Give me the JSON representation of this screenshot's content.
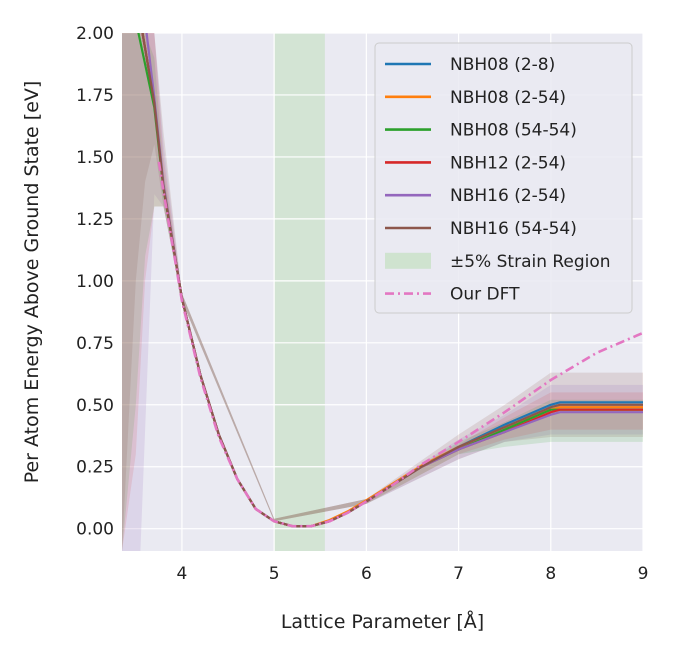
{
  "chart_data": {
    "type": "line",
    "title": "",
    "xlabel": "Lattice Parameter [Å]",
    "ylabel": "Per Atom Energy Above Ground State [eV]",
    "xlim": [
      3.35,
      9.0
    ],
    "ylim": [
      -0.09,
      2.0
    ],
    "xticks": [
      "4",
      "5",
      "6",
      "7",
      "8",
      "9"
    ],
    "yticks": [
      "0.00",
      "0.25",
      "0.50",
      "0.75",
      "1.00",
      "1.25",
      "1.50",
      "1.75",
      "2.00"
    ],
    "grid": true,
    "legend_position": "top-right",
    "strain_region": {
      "name": "±5% Strain Region",
      "x": [
        5.0,
        5.55
      ],
      "color": "#cfe3cf"
    },
    "series": [
      {
        "name": "NBH08 (2-8)",
        "color": "#1f77b4",
        "style": "solid",
        "x": [
          3.55,
          3.7,
          3.8,
          4.0,
          4.2,
          4.4,
          4.6,
          4.8,
          5.0,
          5.2,
          5.4,
          5.6,
          5.8,
          6.0,
          6.3,
          6.6,
          7.0,
          7.5,
          8.0,
          8.1,
          9.0
        ],
        "y": [
          2.05,
          1.72,
          1.38,
          0.93,
          0.62,
          0.38,
          0.2,
          0.08,
          0.03,
          0.01,
          0.01,
          0.03,
          0.065,
          0.11,
          0.18,
          0.25,
          0.33,
          0.42,
          0.5,
          0.51,
          0.51
        ]
      },
      {
        "name": "NBH08 (2-54)",
        "color": "#ff7f0e",
        "style": "solid",
        "x": [
          3.55,
          3.7,
          3.8,
          4.0,
          4.2,
          4.4,
          4.6,
          4.8,
          5.0,
          5.2,
          5.4,
          5.6,
          5.8,
          6.0,
          6.3,
          6.6,
          7.0,
          7.5,
          8.0,
          8.1,
          9.0
        ],
        "y": [
          2.05,
          1.72,
          1.38,
          0.93,
          0.62,
          0.38,
          0.2,
          0.08,
          0.03,
          0.01,
          0.01,
          0.035,
          0.07,
          0.115,
          0.185,
          0.255,
          0.33,
          0.41,
          0.48,
          0.49,
          0.49
        ]
      },
      {
        "name": "NBH08 (54-54)",
        "color": "#2ca02c",
        "style": "solid",
        "x": [
          3.5,
          3.7,
          3.8,
          4.0,
          4.2,
          4.4,
          4.6,
          4.8,
          5.0,
          5.2,
          5.4,
          5.6,
          5.8,
          6.0,
          6.3,
          6.6,
          7.0,
          7.5,
          8.0,
          8.1,
          9.0
        ],
        "y": [
          2.05,
          1.7,
          1.37,
          0.93,
          0.62,
          0.38,
          0.2,
          0.08,
          0.03,
          0.01,
          0.01,
          0.03,
          0.065,
          0.11,
          0.18,
          0.25,
          0.32,
          0.4,
          0.48,
          0.48,
          0.48
        ]
      },
      {
        "name": "NBH12 (2-54)",
        "color": "#d62728",
        "style": "solid",
        "x": [
          3.55,
          3.7,
          3.8,
          4.0,
          4.2,
          4.4,
          4.6,
          4.8,
          5.0,
          5.2,
          5.4,
          5.6,
          5.8,
          6.0,
          6.3,
          6.6,
          7.0,
          7.5,
          8.0,
          8.1,
          9.0
        ],
        "y": [
          2.05,
          1.72,
          1.38,
          0.93,
          0.62,
          0.38,
          0.2,
          0.08,
          0.03,
          0.01,
          0.01,
          0.03,
          0.065,
          0.11,
          0.18,
          0.25,
          0.32,
          0.39,
          0.47,
          0.48,
          0.48
        ]
      },
      {
        "name": "NBH16 (2-54)",
        "color": "#9467bd",
        "style": "solid",
        "x": [
          3.6,
          3.7,
          3.8,
          4.0,
          4.2,
          4.4,
          4.6,
          4.8,
          5.0,
          5.2,
          5.4,
          5.6,
          5.8,
          6.0,
          6.3,
          6.6,
          7.0,
          7.5,
          8.0,
          8.1,
          9.0
        ],
        "y": [
          2.05,
          1.74,
          1.39,
          0.93,
          0.62,
          0.38,
          0.2,
          0.08,
          0.03,
          0.01,
          0.01,
          0.03,
          0.065,
          0.11,
          0.18,
          0.25,
          0.32,
          0.39,
          0.46,
          0.47,
          0.47
        ]
      },
      {
        "name": "NBH16 (54-54)",
        "color": "#8c564b",
        "style": "solid",
        "x": [
          3.55,
          3.7,
          3.8,
          4.0,
          4.2,
          4.4,
          4.6,
          4.8,
          5.0,
          5.2,
          5.4,
          5.6,
          5.8,
          6.0,
          6.3,
          6.6,
          7.0,
          7.5,
          8.0,
          8.1,
          9.0
        ],
        "y": [
          2.05,
          1.72,
          1.38,
          0.93,
          0.62,
          0.38,
          0.2,
          0.08,
          0.03,
          0.01,
          0.01,
          0.03,
          0.065,
          0.11,
          0.18,
          0.25,
          0.33,
          0.41,
          0.49,
          0.5,
          0.5
        ]
      },
      {
        "name": "Our DFT",
        "color": "#e377c2",
        "style": "dashdot",
        "x": [
          3.75,
          3.8,
          4.0,
          4.2,
          4.4,
          4.6,
          4.8,
          5.0,
          5.2,
          5.4,
          5.6,
          5.8,
          6.0,
          6.3,
          6.6,
          7.0,
          7.5,
          8.0,
          8.5,
          9.0
        ],
        "y": [
          1.48,
          1.36,
          0.92,
          0.61,
          0.37,
          0.2,
          0.08,
          0.03,
          0.01,
          0.01,
          0.03,
          0.065,
          0.11,
          0.18,
          0.26,
          0.35,
          0.47,
          0.6,
          0.71,
          0.79
        ]
      }
    ],
    "uncertainty_bands": [
      {
        "color": "#8c564b",
        "opacity": 0.16,
        "x": [
          3.35,
          3.5,
          3.6,
          3.7,
          3.8,
          4.0,
          5.0,
          6.0,
          7.0,
          7.5,
          8.0,
          9.0
        ],
        "lower": [
          -0.09,
          1.0,
          1.4,
          1.55,
          1.3,
          0.92,
          0.03,
          0.1,
          0.28,
          0.35,
          0.37,
          0.37
        ],
        "upper": [
          2.0,
          2.0,
          2.0,
          2.0,
          1.6,
          0.95,
          0.04,
          0.12,
          0.38,
          0.5,
          0.63,
          0.63
        ]
      },
      {
        "color": "#9467bd",
        "opacity": 0.16,
        "x": [
          3.35,
          3.45,
          3.55,
          3.7,
          3.8,
          4.0,
          5.0,
          6.0,
          7.0,
          7.5,
          8.0,
          9.0
        ],
        "lower": [
          -0.09,
          -0.09,
          -0.09,
          1.35,
          1.3,
          0.92,
          0.03,
          0.1,
          0.28,
          0.35,
          0.38,
          0.38
        ],
        "upper": [
          2.0,
          2.0,
          2.0,
          2.0,
          1.55,
          0.95,
          0.04,
          0.12,
          0.36,
          0.46,
          0.58,
          0.58
        ]
      },
      {
        "color": "#2ca02c",
        "opacity": 0.14,
        "x": [
          3.35,
          3.5,
          3.6,
          3.7,
          3.8,
          4.0,
          5.0,
          6.0,
          7.0,
          7.5,
          8.0,
          9.0
        ],
        "lower": [
          -0.09,
          0.5,
          1.1,
          1.3,
          1.3,
          0.92,
          0.03,
          0.1,
          0.3,
          0.33,
          0.35,
          0.35
        ],
        "upper": [
          2.0,
          2.0,
          2.0,
          1.9,
          1.45,
          0.95,
          0.04,
          0.12,
          0.35,
          0.43,
          0.52,
          0.52
        ]
      },
      {
        "color": "#d62728",
        "opacity": 0.12,
        "x": [
          3.35,
          3.5,
          3.6,
          3.7,
          3.8,
          4.0,
          5.0,
          6.0,
          7.0,
          7.5,
          8.0,
          9.0
        ],
        "lower": [
          -0.09,
          0.3,
          1.0,
          1.3,
          1.3,
          0.92,
          0.03,
          0.1,
          0.3,
          0.36,
          0.4,
          0.4
        ],
        "upper": [
          2.0,
          2.0,
          2.0,
          2.0,
          1.5,
          0.95,
          0.04,
          0.12,
          0.34,
          0.45,
          0.55,
          0.55
        ]
      }
    ]
  }
}
